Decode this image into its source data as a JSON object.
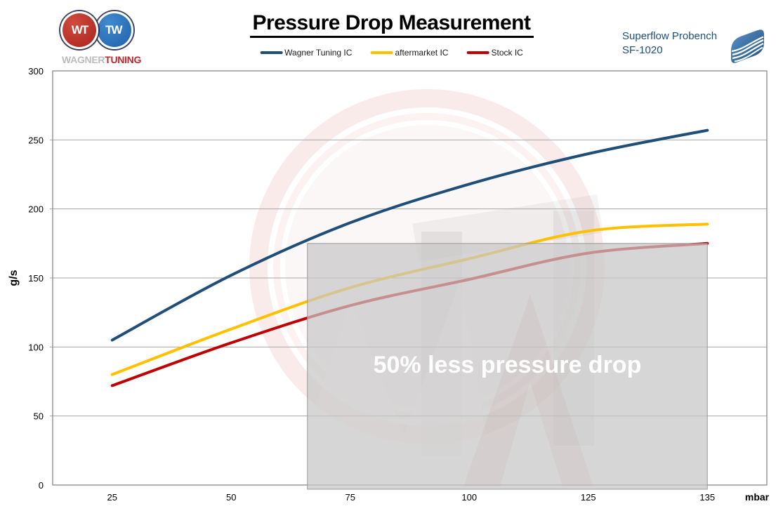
{
  "header": {
    "title": "Pressure Drop Measurement",
    "logo": {
      "monogram": "WT",
      "name_gray": "WAGNER",
      "name_red": "TUNING"
    },
    "bench": {
      "line1": "Superflow Probench",
      "line2": "SF-1020",
      "text_color": "#1F4E79"
    }
  },
  "chart_data": {
    "type": "line",
    "x": [
      25,
      50,
      75,
      100,
      125,
      135
    ],
    "x_tick_labels": [
      "25",
      "50",
      "75",
      "100",
      "125",
      "135"
    ],
    "x_unit_label": "mbar",
    "ylabel": "g/s",
    "ylim": [
      0,
      300
    ],
    "y_ticks": [
      0,
      50,
      100,
      150,
      200,
      250,
      300
    ],
    "grid": true,
    "legend_position": "top-center",
    "series": [
      {
        "name": "Wagner Tuning IC",
        "color": "#1F4E79",
        "values": [
          105,
          152,
          190,
          218,
          240,
          257
        ]
      },
      {
        "name": "aftermarket IC",
        "color": "#FFC000",
        "values": [
          80,
          113,
          143,
          164,
          184,
          189
        ]
      },
      {
        "name": "Stock IC",
        "color": "#C00000",
        "values": [
          72,
          103,
          130,
          149,
          168,
          175
        ]
      }
    ],
    "annotation": {
      "text": "50% less pressure drop",
      "text_color": "#FFFFFF",
      "box_fill": "#C8C6C6",
      "box_border": "#999999",
      "x_from": 66,
      "x_to": 135,
      "y_from": 0,
      "y_to": 175
    },
    "colors": {
      "gridline": "#A6A6A6",
      "plot_border": "#808080",
      "tick_text": "#000000",
      "watermark_red": "#C00000"
    }
  }
}
